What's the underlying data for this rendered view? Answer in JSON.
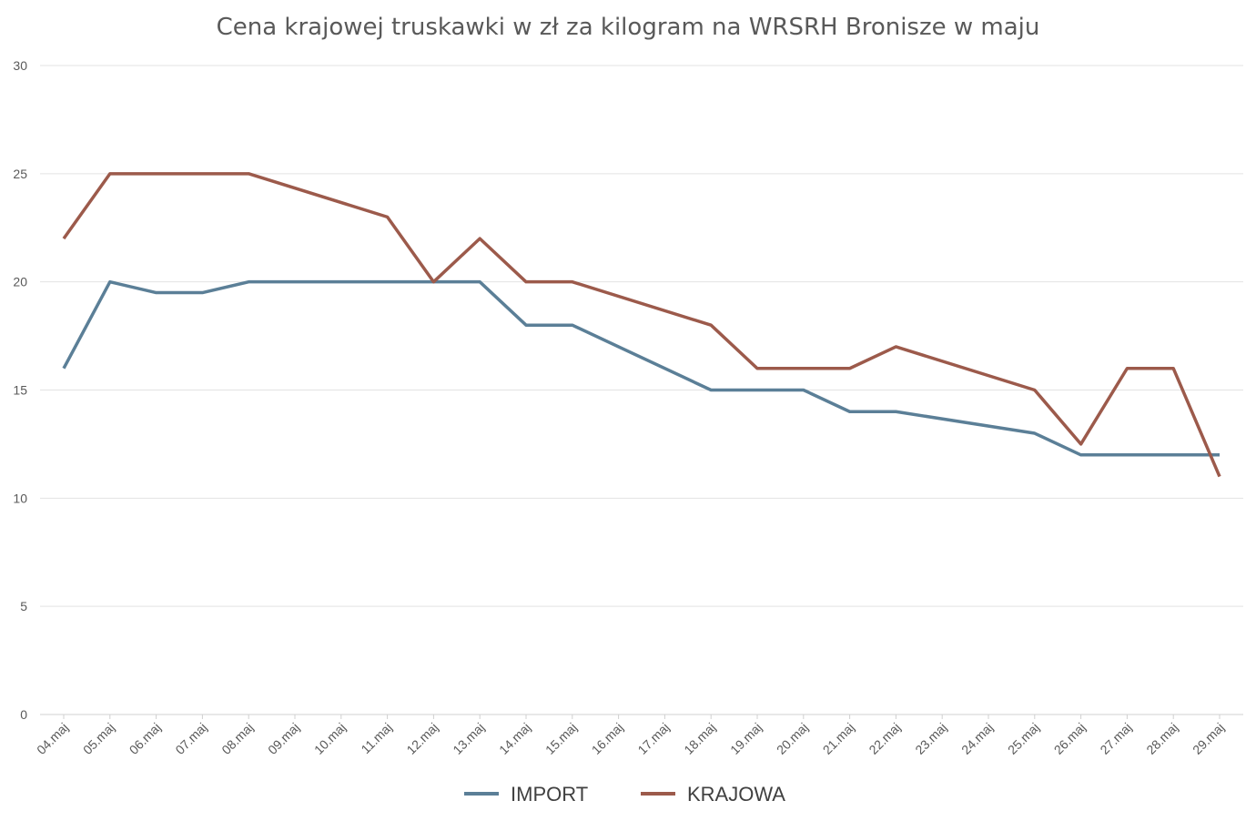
{
  "chart_data": {
    "type": "line",
    "title": "Cena krajowej truskawki w zł za kilogram na WRSRH Bronisze w maju",
    "xlabel": "",
    "ylabel": "",
    "ylim": [
      0,
      30
    ],
    "yticks": [
      "0",
      "5",
      "10",
      "15",
      "20",
      "25",
      "30"
    ],
    "grid": true,
    "legend_position": "bottom",
    "categories": [
      "04.maj",
      "05.maj",
      "06.maj",
      "07.maj",
      "08.maj",
      "09.maj",
      "10.maj",
      "11.maj",
      "12.maj",
      "13.maj",
      "14.maj",
      "15.maj",
      "16.maj",
      "17.maj",
      "18.maj",
      "19.maj",
      "20.maj",
      "21.maj",
      "22.maj",
      "23.maj",
      "24.maj",
      "25.maj",
      "26.maj",
      "27.maj",
      "28.maj",
      "29.maj"
    ],
    "series": [
      {
        "name": "IMPORT",
        "color": "#5b7f97",
        "values": [
          16,
          20,
          19.5,
          19.5,
          20,
          20,
          20,
          20,
          20,
          20,
          18,
          18,
          null,
          null,
          15,
          15,
          15,
          14,
          14,
          null,
          null,
          13,
          12,
          12,
          12,
          12
        ]
      },
      {
        "name": "KRAJOWA",
        "color": "#9c5a4b",
        "values": [
          22,
          25,
          25,
          25,
          25,
          null,
          null,
          23,
          20,
          22,
          20,
          20,
          null,
          null,
          18,
          16,
          16,
          16,
          17,
          null,
          null,
          15,
          12.5,
          16,
          16,
          11
        ]
      }
    ]
  }
}
